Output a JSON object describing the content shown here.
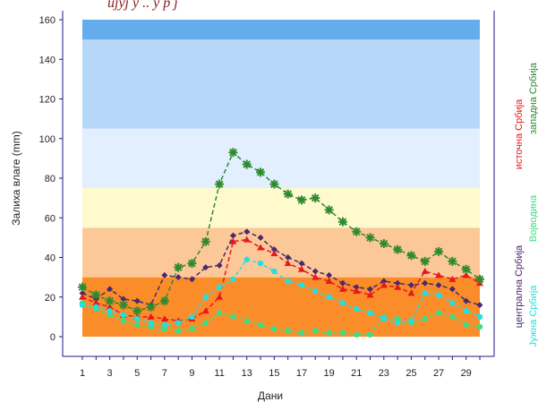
{
  "chart_data": {
    "type": "line",
    "title": "ujyj y  ..  y  p   j  ",
    "xlabel": "Дани",
    "ylabel": "Залиха влаге (mm)",
    "xlim": [
      1,
      30
    ],
    "ylim": [
      0,
      160
    ],
    "x_ticks": [
      1,
      3,
      5,
      7,
      9,
      11,
      13,
      15,
      17,
      19,
      21,
      23,
      25,
      27,
      29
    ],
    "y_ticks": [
      0,
      20,
      40,
      60,
      80,
      100,
      120,
      140,
      160
    ],
    "bands": [
      {
        "from": 0,
        "to": 30,
        "color": "#fb8c2a"
      },
      {
        "from": 30,
        "to": 55,
        "color": "#fdc898"
      },
      {
        "from": 55,
        "to": 75,
        "color": "#fffacd"
      },
      {
        "from": 75,
        "to": 105,
        "color": "#e1efff"
      },
      {
        "from": 105,
        "to": 150,
        "color": "#b7d7f8"
      },
      {
        "from": 150,
        "to": 160,
        "color": "#64acec"
      }
    ],
    "x": [
      1,
      2,
      3,
      4,
      5,
      6,
      7,
      8,
      9,
      10,
      11,
      12,
      13,
      14,
      15,
      16,
      17,
      18,
      19,
      20,
      21,
      22,
      23,
      24,
      25,
      26,
      27,
      28,
      29,
      30
    ],
    "series": [
      {
        "name": "централна Србија",
        "color": "#4a2a6e",
        "marker": "diamond",
        "values": [
          22,
          19,
          24,
          19,
          18,
          16,
          31,
          30,
          29,
          35,
          36,
          51,
          53,
          50,
          44,
          40,
          37,
          33,
          31,
          27,
          25,
          24,
          28,
          27,
          26,
          27,
          26,
          24,
          18,
          16
        ]
      },
      {
        "name": "источна Србија",
        "color": "#e41a1c",
        "marker": "triangle",
        "values": [
          20,
          17,
          15,
          11,
          10,
          10,
          9,
          8,
          9,
          13,
          20,
          48,
          49,
          45,
          42,
          37,
          34,
          30,
          28,
          24,
          23,
          21,
          26,
          25,
          22,
          33,
          31,
          29,
          31,
          27
        ]
      },
      {
        "name": "западна Србија",
        "color": "#2e8b2e",
        "marker": "star",
        "values": [
          25,
          21,
          18,
          16,
          13,
          15,
          18,
          35,
          37,
          48,
          77,
          93,
          87,
          83,
          77,
          72,
          69,
          70,
          64,
          58,
          53,
          50,
          47,
          44,
          41,
          38,
          43,
          38,
          34,
          29
        ]
      },
      {
        "name": "Војводина",
        "color": "#3ddc84",
        "marker": "circle",
        "values": [
          17,
          14,
          11,
          8,
          6,
          5,
          4,
          3,
          4,
          7,
          12,
          10,
          8,
          6,
          4,
          3,
          2,
          3,
          2,
          2,
          1,
          1,
          10,
          9,
          7,
          9,
          12,
          10,
          6,
          5
        ]
      },
      {
        "name": "Јужна Србија",
        "color": "#22e0e0",
        "marker": "circle",
        "values": [
          16,
          15,
          13,
          11,
          9,
          7,
          6,
          7,
          10,
          20,
          25,
          29,
          39,
          37,
          33,
          28,
          26,
          23,
          20,
          17,
          14,
          12,
          9,
          7,
          8,
          22,
          21,
          17,
          13,
          10
        ]
      }
    ],
    "legend_placement": "right (vertical)"
  }
}
